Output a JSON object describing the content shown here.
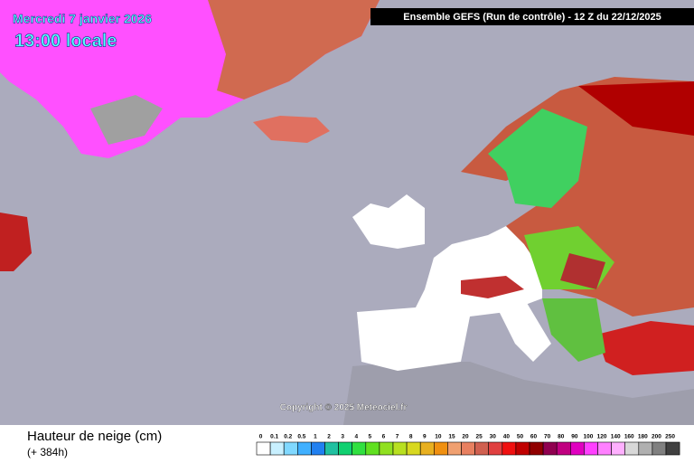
{
  "header": {
    "date": "Mercredi 7 janvier 2026",
    "time": "13:00 locale",
    "model": "Ensemble GEFS  (Run de contrôle)  -  12 Z du 22/12/2025"
  },
  "copyright": "Copyright © 2025 Meteociel.fr",
  "legend": {
    "title": "Hauteur de neige (cm)",
    "subtitle": "(+ 384h)",
    "items": [
      {
        "label": "0",
        "color": "#ffffff"
      },
      {
        "label": "0.1",
        "color": "#c8f0ff"
      },
      {
        "label": "0.2",
        "color": "#80d8ff"
      },
      {
        "label": "0.5",
        "color": "#40b0ff"
      },
      {
        "label": "1",
        "color": "#2080f0"
      },
      {
        "label": "2",
        "color": "#20c0a0"
      },
      {
        "label": "3",
        "color": "#10d070"
      },
      {
        "label": "4",
        "color": "#30e040"
      },
      {
        "label": "5",
        "color": "#60e020"
      },
      {
        "label": "6",
        "color": "#90e020"
      },
      {
        "label": "7",
        "color": "#b8e020"
      },
      {
        "label": "8",
        "color": "#d8d820"
      },
      {
        "label": "9",
        "color": "#e8b020"
      },
      {
        "label": "10",
        "color": "#f09010"
      },
      {
        "label": "15",
        "color": "#f0a070"
      },
      {
        "label": "20",
        "color": "#e88060"
      },
      {
        "label": "25",
        "color": "#d06050"
      },
      {
        "label": "30",
        "color": "#e04040"
      },
      {
        "label": "40",
        "color": "#f01010"
      },
      {
        "label": "50",
        "color": "#c00000"
      },
      {
        "label": "60",
        "color": "#900000"
      },
      {
        "label": "70",
        "color": "#900050"
      },
      {
        "label": "80",
        "color": "#c00080"
      },
      {
        "label": "90",
        "color": "#e000c0"
      },
      {
        "label": "100",
        "color": "#ff40ff"
      },
      {
        "label": "120",
        "color": "#ff80ff"
      },
      {
        "label": "140",
        "color": "#ffb0ff"
      },
      {
        "label": "160",
        "color": "#d8d8d8"
      },
      {
        "label": "180",
        "color": "#b0b0b0"
      },
      {
        "label": "200",
        "color": "#808080"
      },
      {
        "label": "250",
        "color": "#404040"
      }
    ]
  }
}
